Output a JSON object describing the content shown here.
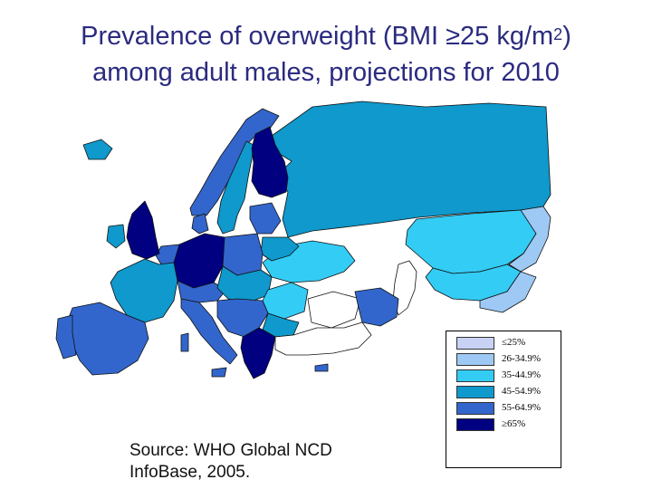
{
  "title": {
    "line1_main": "Prevalence of overweight (BMI ≥25 kg/m",
    "line1_sup": "2",
    "line1_end": ")",
    "line2": "among adult males, projections for 2010"
  },
  "legend": [
    {
      "label": "≤25%",
      "color": "#c8d2f5"
    },
    {
      "label": "26-34.9%",
      "color": "#9ec9f5"
    },
    {
      "label": "35-44.9%",
      "color": "#33ccf5"
    },
    {
      "label": "45-54.9%",
      "color": "#0f99cc"
    },
    {
      "label": "55-64.9%",
      "color": "#3366cc"
    },
    {
      "label": "≥65%",
      "color": "#000080"
    }
  ],
  "source": {
    "line1": "Source: WHO Global NCD",
    "line2": "InfoBase, 2005."
  },
  "colors": {
    "title": "#2b2b80",
    "border": "#111111",
    "no_data": "#ffffff"
  }
}
